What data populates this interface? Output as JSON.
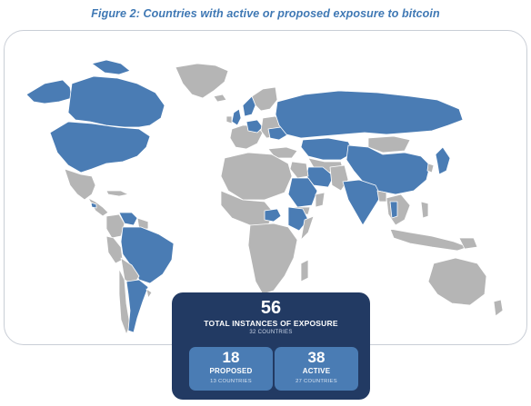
{
  "figure": {
    "title": "Figure 2: Countries with active or proposed exposure to bitcoin"
  },
  "colors": {
    "exposure": "#4a7cb4",
    "no_exposure": "#b5b5b5",
    "border": "#ffffff",
    "card_bg": "#223a63",
    "sub_card_bg": "#4a7cb4",
    "title": "#3f78b4"
  },
  "legend_icons": {
    "map": "world-map"
  },
  "stats": {
    "total": {
      "number": "56",
      "label": "TOTAL INSTANCES OF EXPOSURE",
      "sub": "32 COUNTRIES"
    },
    "proposed": {
      "number": "18",
      "label": "PROPOSED",
      "sub": "13 COUNTRIES"
    },
    "active": {
      "number": "38",
      "label": "ACTIVE",
      "sub": "27 COUNTRIES"
    }
  }
}
